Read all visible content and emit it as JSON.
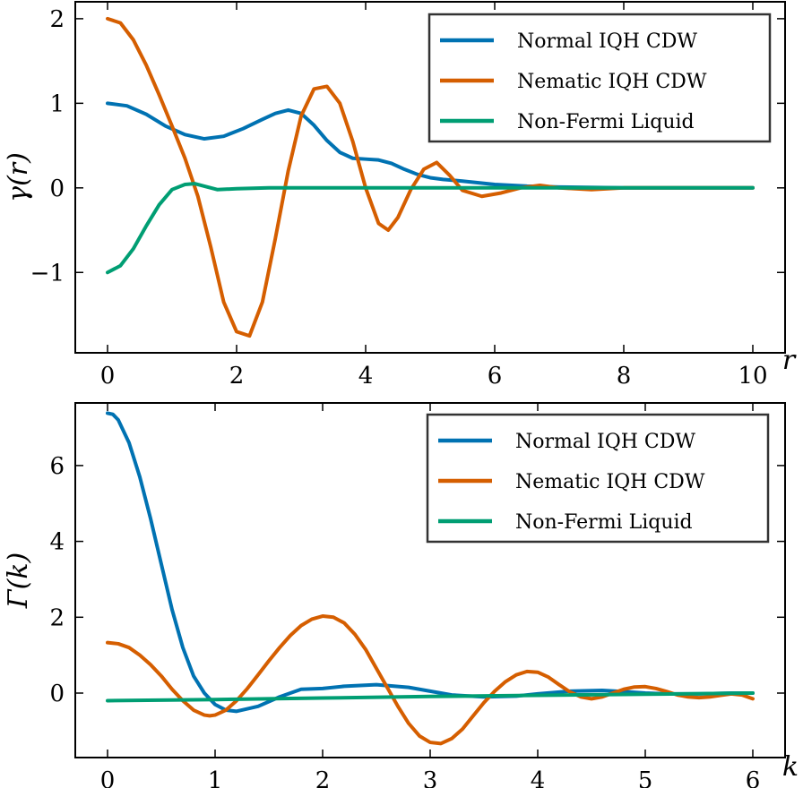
{
  "chart_data": [
    {
      "type": "line",
      "ylabel": "γ(r)",
      "xlabel": "r",
      "xlim": [
        -0.5,
        10.5
      ],
      "ylim": [
        -1.95,
        2.2
      ],
      "xticks": [
        0,
        2,
        4,
        6,
        8,
        10
      ],
      "yticks": [
        -1,
        0,
        1,
        2
      ],
      "xtick_labels": [
        "0",
        "2",
        "4",
        "6",
        "8",
        "10"
      ],
      "ytick_labels": [
        "−1",
        "0",
        "1",
        "2"
      ],
      "legend_position": "top-right",
      "series": [
        {
          "name": "Normal IQH CDW",
          "color": "#0072B2",
          "x": [
            0,
            0.3,
            0.6,
            0.9,
            1.2,
            1.5,
            1.8,
            2.1,
            2.4,
            2.6,
            2.8,
            3.0,
            3.2,
            3.4,
            3.6,
            3.8,
            4.0,
            4.2,
            4.4,
            4.6,
            4.8,
            5.0,
            5.2,
            5.5,
            6.0,
            6.5,
            7.0,
            8.0,
            9.0,
            10.0
          ],
          "y": [
            1.0,
            0.97,
            0.87,
            0.73,
            0.63,
            0.58,
            0.61,
            0.7,
            0.81,
            0.88,
            0.92,
            0.88,
            0.74,
            0.56,
            0.42,
            0.35,
            0.34,
            0.33,
            0.29,
            0.22,
            0.16,
            0.12,
            0.1,
            0.08,
            0.04,
            0.02,
            0.01,
            0.0,
            0.0,
            0.0
          ]
        },
        {
          "name": "Nematic IQH CDW",
          "color": "#D55E00",
          "x": [
            0,
            0.2,
            0.4,
            0.6,
            0.8,
            1.0,
            1.2,
            1.4,
            1.6,
            1.8,
            2.0,
            2.2,
            2.4,
            2.6,
            2.8,
            3.0,
            3.2,
            3.4,
            3.6,
            3.8,
            4.0,
            4.2,
            4.35,
            4.5,
            4.7,
            4.9,
            5.1,
            5.3,
            5.5,
            5.8,
            6.1,
            6.4,
            6.7,
            7.0,
            7.5,
            8.0,
            9.0,
            10.0
          ],
          "y": [
            2.0,
            1.95,
            1.75,
            1.45,
            1.1,
            0.73,
            0.35,
            -0.1,
            -0.7,
            -1.35,
            -1.7,
            -1.75,
            -1.35,
            -0.6,
            0.2,
            0.85,
            1.17,
            1.2,
            1.0,
            0.55,
            0.0,
            -0.42,
            -0.5,
            -0.35,
            -0.02,
            0.22,
            0.3,
            0.15,
            -0.03,
            -0.1,
            -0.06,
            0.0,
            0.03,
            0.0,
            -0.02,
            0.0,
            0.0,
            0.0
          ]
        },
        {
          "name": "Non-Fermi Liquid",
          "color": "#009E73",
          "x": [
            0,
            0.2,
            0.4,
            0.6,
            0.8,
            1.0,
            1.2,
            1.35,
            1.5,
            1.7,
            2.0,
            2.5,
            3.0,
            4.0,
            6.0,
            8.0,
            10.0
          ],
          "y": [
            -1.0,
            -0.92,
            -0.72,
            -0.45,
            -0.2,
            -0.02,
            0.04,
            0.05,
            0.02,
            -0.02,
            -0.01,
            0.0,
            0.0,
            0.0,
            0.0,
            0.0,
            0.0
          ]
        }
      ]
    },
    {
      "type": "line",
      "ylabel": "Γ(k)",
      "xlabel": "k",
      "xlim": [
        -0.3,
        6.3
      ],
      "ylim": [
        -1.7,
        7.65
      ],
      "xticks": [
        0,
        1,
        2,
        3,
        4,
        5,
        6
      ],
      "yticks": [
        0,
        2,
        4,
        6
      ],
      "xtick_labels": [
        "0",
        "1",
        "2",
        "3",
        "4",
        "5",
        "6"
      ],
      "ytick_labels": [
        "0",
        "2",
        "4",
        "6"
      ],
      "legend_position": "top-right",
      "series": [
        {
          "name": "Normal IQH CDW",
          "color": "#0072B2",
          "x": [
            0,
            0.05,
            0.1,
            0.2,
            0.3,
            0.4,
            0.5,
            0.6,
            0.7,
            0.8,
            0.9,
            1.0,
            1.1,
            1.2,
            1.4,
            1.6,
            1.8,
            2.0,
            2.2,
            2.5,
            2.8,
            3.0,
            3.2,
            3.5,
            3.8,
            4.0,
            4.3,
            4.6,
            4.8,
            5.0,
            5.2,
            5.5,
            5.8,
            6.0
          ],
          "y": [
            7.38,
            7.35,
            7.2,
            6.6,
            5.7,
            4.6,
            3.4,
            2.2,
            1.2,
            0.45,
            0.0,
            -0.3,
            -0.45,
            -0.48,
            -0.35,
            -0.1,
            0.1,
            0.12,
            0.18,
            0.22,
            0.15,
            0.05,
            -0.05,
            -0.1,
            -0.08,
            -0.02,
            0.05,
            0.07,
            0.04,
            0.0,
            -0.02,
            -0.02,
            0.0,
            0.0
          ]
        },
        {
          "name": "Nematic IQH CDW",
          "color": "#D55E00",
          "x": [
            0,
            0.1,
            0.2,
            0.3,
            0.4,
            0.5,
            0.6,
            0.7,
            0.8,
            0.9,
            0.95,
            1.0,
            1.1,
            1.2,
            1.3,
            1.4,
            1.5,
            1.6,
            1.7,
            1.8,
            1.9,
            2.0,
            2.1,
            2.2,
            2.3,
            2.4,
            2.5,
            2.6,
            2.7,
            2.8,
            2.9,
            3.0,
            3.1,
            3.2,
            3.3,
            3.4,
            3.5,
            3.6,
            3.7,
            3.8,
            3.9,
            4.0,
            4.1,
            4.2,
            4.3,
            4.4,
            4.5,
            4.6,
            4.7,
            4.8,
            4.9,
            5.0,
            5.1,
            5.2,
            5.3,
            5.4,
            5.5,
            5.6,
            5.7,
            5.8,
            5.9,
            6.0
          ],
          "y": [
            1.33,
            1.3,
            1.2,
            1.0,
            0.75,
            0.45,
            0.1,
            -0.2,
            -0.45,
            -0.58,
            -0.6,
            -0.58,
            -0.45,
            -0.2,
            0.12,
            0.48,
            0.85,
            1.2,
            1.52,
            1.78,
            1.95,
            2.03,
            2.0,
            1.85,
            1.55,
            1.15,
            0.65,
            0.15,
            -0.35,
            -0.8,
            -1.13,
            -1.3,
            -1.33,
            -1.2,
            -0.95,
            -0.6,
            -0.25,
            0.05,
            0.3,
            0.48,
            0.57,
            0.55,
            0.42,
            0.22,
            0.03,
            -0.1,
            -0.15,
            -0.1,
            0.0,
            0.1,
            0.16,
            0.17,
            0.12,
            0.04,
            -0.05,
            -0.1,
            -0.12,
            -0.1,
            -0.06,
            -0.02,
            -0.05,
            -0.15
          ]
        },
        {
          "name": "Non-Fermi Liquid",
          "color": "#009E73",
          "x": [
            0,
            1,
            2,
            3,
            4,
            5,
            6
          ],
          "y": [
            -0.2,
            -0.17,
            -0.13,
            -0.09,
            -0.06,
            -0.03,
            0.0
          ]
        }
      ]
    }
  ]
}
